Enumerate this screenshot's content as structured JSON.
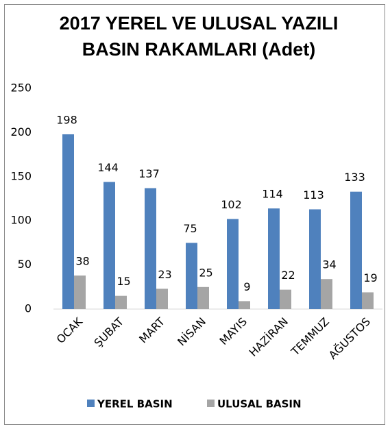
{
  "chart_data": {
    "type": "bar",
    "title": [
      "2017 YEREL VE ULUSAL YAZILI",
      "BASIN RAKAMLARI (Adet)"
    ],
    "categories": [
      "OCAK",
      "ŞUBAT",
      "MART",
      "NİSAN",
      "MAYIS",
      "HAZİRAN",
      "TEMMUZ",
      "AĞUSTOS"
    ],
    "series": [
      {
        "name": "YEREL BASIN",
        "color": "#4f81bd",
        "values": [
          198,
          144,
          137,
          75,
          102,
          114,
          113,
          133
        ]
      },
      {
        "name": "ULUSAL BASIN",
        "color": "#a5a5a5",
        "values": [
          38,
          15,
          23,
          25,
          9,
          22,
          34,
          19
        ]
      }
    ],
    "ylim": [
      0,
      250
    ],
    "yticks": [
      0,
      50,
      100,
      150,
      200,
      250
    ],
    "grid": false,
    "legend": "bottom"
  }
}
